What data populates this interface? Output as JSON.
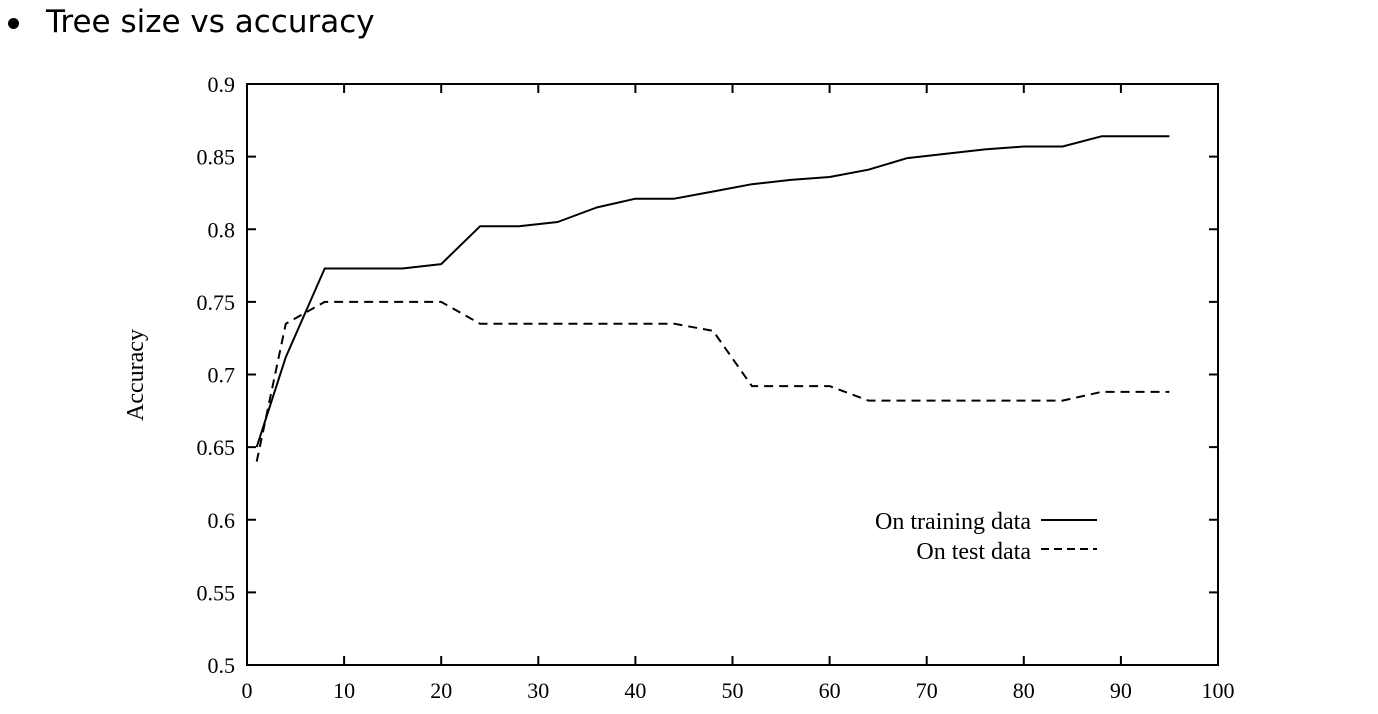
{
  "slide": {
    "bullet_text": "Tree size vs accuracy"
  },
  "chart_data": {
    "type": "line",
    "title": "",
    "xlabel": "",
    "ylabel": "Accuracy",
    "xlim": [
      0,
      100
    ],
    "ylim": [
      0.5,
      0.9
    ],
    "x_ticks": [
      0,
      10,
      20,
      30,
      40,
      50,
      60,
      70,
      80,
      90,
      100
    ],
    "y_ticks": [
      0.5,
      0.55,
      0.6,
      0.65,
      0.7,
      0.75,
      0.8,
      0.85,
      0.9
    ],
    "grid": false,
    "legend_position": "lower-right",
    "series": [
      {
        "name": "On training data",
        "style": "solid",
        "color": "#000000",
        "x": [
          1,
          4,
          8,
          12,
          16,
          20,
          24,
          28,
          32,
          36,
          40,
          44,
          48,
          52,
          56,
          60,
          64,
          68,
          72,
          76,
          80,
          84,
          88,
          92,
          95
        ],
        "y": [
          0.65,
          0.712,
          0.773,
          0.773,
          0.773,
          0.776,
          0.802,
          0.802,
          0.805,
          0.815,
          0.821,
          0.821,
          0.826,
          0.831,
          0.834,
          0.836,
          0.841,
          0.849,
          0.852,
          0.855,
          0.857,
          0.857,
          0.864,
          0.864,
          0.864
        ]
      },
      {
        "name": "On test data",
        "style": "dashed",
        "color": "#000000",
        "x": [
          1,
          4,
          8,
          12,
          16,
          20,
          24,
          28,
          32,
          36,
          40,
          44,
          48,
          52,
          56,
          60,
          64,
          68,
          72,
          76,
          80,
          84,
          88,
          92,
          95
        ],
        "y": [
          0.64,
          0.735,
          0.75,
          0.75,
          0.75,
          0.75,
          0.735,
          0.735,
          0.735,
          0.735,
          0.735,
          0.735,
          0.73,
          0.692,
          0.692,
          0.692,
          0.682,
          0.682,
          0.682,
          0.682,
          0.682,
          0.682,
          0.688,
          0.688,
          0.688
        ]
      }
    ]
  }
}
